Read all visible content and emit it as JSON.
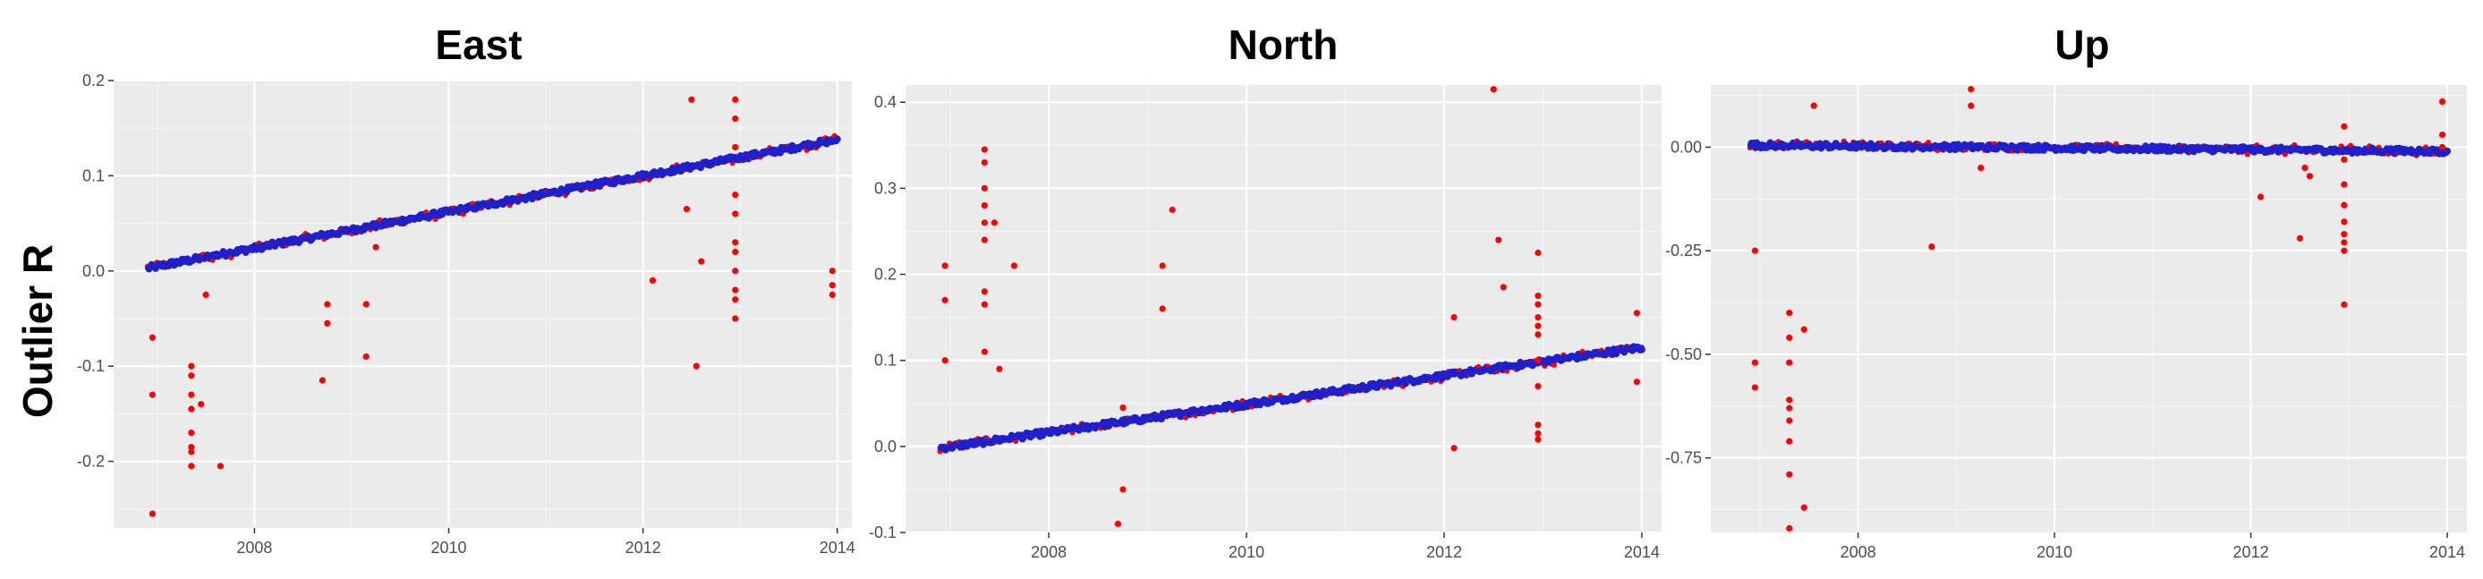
{
  "figure": {
    "ylabel": "Outlier R"
  },
  "colors": {
    "panel_bg": "#EBEBEB",
    "grid": "#FFFFFF",
    "outlier": "#FF0000",
    "fit": "#1F1FCC"
  },
  "chart_data": [
    {
      "type": "scatter",
      "title": "East",
      "xlabel": "",
      "ylabel": "Outlier R",
      "xlim": [
        2006.55,
        2014.15
      ],
      "ylim": [
        -0.27,
        0.2
      ],
      "xticks": [
        2008,
        2010,
        2012,
        2014
      ],
      "yticks": [
        -0.2,
        -0.1,
        0.0,
        0.1,
        0.2
      ],
      "ytick_labels": [
        "-0.2",
        "-0.1",
        "0.0",
        "0.1",
        "0.2"
      ],
      "grid": true,
      "trend": {
        "x": [
          2006.9,
          2014.0
        ],
        "y": [
          0.003,
          0.138
        ]
      },
      "outliers": [
        [
          2006.95,
          -0.07
        ],
        [
          2006.95,
          -0.13
        ],
        [
          2006.95,
          -0.255
        ],
        [
          2007.35,
          -0.1
        ],
        [
          2007.35,
          -0.11
        ],
        [
          2007.35,
          -0.13
        ],
        [
          2007.35,
          -0.145
        ],
        [
          2007.35,
          -0.17
        ],
        [
          2007.35,
          -0.185
        ],
        [
          2007.35,
          -0.19
        ],
        [
          2007.35,
          -0.205
        ],
        [
          2007.45,
          -0.14
        ],
        [
          2007.5,
          -0.025
        ],
        [
          2007.65,
          -0.205
        ],
        [
          2008.7,
          -0.115
        ],
        [
          2008.75,
          -0.035
        ],
        [
          2008.75,
          -0.055
        ],
        [
          2009.15,
          -0.035
        ],
        [
          2009.15,
          -0.09
        ],
        [
          2009.25,
          0.025
        ],
        [
          2012.1,
          -0.01
        ],
        [
          2012.45,
          0.065
        ],
        [
          2012.5,
          0.18
        ],
        [
          2012.55,
          -0.1
        ],
        [
          2012.6,
          0.01
        ],
        [
          2012.95,
          0.18
        ],
        [
          2012.95,
          0.16
        ],
        [
          2012.95,
          0.13
        ],
        [
          2012.95,
          0.08
        ],
        [
          2012.95,
          0.06
        ],
        [
          2012.95,
          0.03
        ],
        [
          2012.95,
          0.02
        ],
        [
          2012.95,
          0.0
        ],
        [
          2012.95,
          -0.02
        ],
        [
          2012.95,
          -0.03
        ],
        [
          2012.95,
          -0.05
        ],
        [
          2013.95,
          0.0
        ],
        [
          2013.95,
          -0.015
        ],
        [
          2013.95,
          -0.025
        ]
      ]
    },
    {
      "type": "scatter",
      "title": "North",
      "xlabel": "",
      "ylabel": "",
      "xlim": [
        2006.55,
        2014.2
      ],
      "ylim": [
        -0.1,
        0.42
      ],
      "xticks": [
        2008,
        2010,
        2012,
        2014
      ],
      "yticks": [
        -0.1,
        0.0,
        0.1,
        0.2,
        0.3,
        0.4
      ],
      "ytick_labels": [
        "-0.1",
        "0.0",
        "0.1",
        "0.2",
        "0.3",
        "0.4"
      ],
      "grid": true,
      "trend": {
        "x": [
          2006.9,
          2014.0
        ],
        "y": [
          -0.002,
          0.115
        ]
      },
      "outliers": [
        [
          2006.95,
          0.21
        ],
        [
          2006.95,
          0.17
        ],
        [
          2006.95,
          0.1
        ],
        [
          2007.35,
          0.345
        ],
        [
          2007.35,
          0.33
        ],
        [
          2007.35,
          0.3
        ],
        [
          2007.35,
          0.28
        ],
        [
          2007.35,
          0.26
        ],
        [
          2007.35,
          0.24
        ],
        [
          2007.35,
          0.18
        ],
        [
          2007.35,
          0.165
        ],
        [
          2007.35,
          0.11
        ],
        [
          2007.45,
          0.26
        ],
        [
          2007.5,
          0.09
        ],
        [
          2007.65,
          0.21
        ],
        [
          2008.7,
          -0.09
        ],
        [
          2008.75,
          -0.05
        ],
        [
          2008.75,
          0.045
        ],
        [
          2009.15,
          0.21
        ],
        [
          2009.15,
          0.16
        ],
        [
          2009.25,
          0.275
        ],
        [
          2012.1,
          -0.002
        ],
        [
          2012.1,
          0.15
        ],
        [
          2012.5,
          0.415
        ],
        [
          2012.55,
          0.24
        ],
        [
          2012.6,
          0.185
        ],
        [
          2012.95,
          0.225
        ],
        [
          2012.95,
          0.175
        ],
        [
          2012.95,
          0.165
        ],
        [
          2012.95,
          0.15
        ],
        [
          2012.95,
          0.14
        ],
        [
          2012.95,
          0.13
        ],
        [
          2012.95,
          0.1
        ],
        [
          2012.95,
          0.07
        ],
        [
          2012.95,
          0.025
        ],
        [
          2012.95,
          0.015
        ],
        [
          2012.95,
          0.008
        ],
        [
          2013.95,
          0.155
        ],
        [
          2013.95,
          0.075
        ]
      ]
    },
    {
      "type": "scatter",
      "title": "Up",
      "xlabel": "",
      "ylabel": "",
      "xlim": [
        2006.5,
        2014.2
      ],
      "ylim": [
        -0.93,
        0.15
      ],
      "xticks": [
        2008,
        2010,
        2012,
        2014
      ],
      "yticks": [
        -0.75,
        -0.5,
        -0.25,
        0.0
      ],
      "ytick_labels": [
        "-0.75",
        "-0.50",
        "-0.25",
        "0.00"
      ],
      "grid": true,
      "trend": {
        "x": [
          2006.9,
          2014.0
        ],
        "y": [
          0.005,
          -0.01
        ]
      },
      "outliers": [
        [
          2006.95,
          -0.25
        ],
        [
          2006.95,
          -0.52
        ],
        [
          2006.95,
          -0.58
        ],
        [
          2007.3,
          -0.4
        ],
        [
          2007.3,
          -0.46
        ],
        [
          2007.3,
          -0.52
        ],
        [
          2007.3,
          -0.61
        ],
        [
          2007.3,
          -0.63
        ],
        [
          2007.3,
          -0.66
        ],
        [
          2007.3,
          -0.71
        ],
        [
          2007.3,
          -0.79
        ],
        [
          2007.3,
          -0.92
        ],
        [
          2007.45,
          -0.44
        ],
        [
          2007.45,
          -0.87
        ],
        [
          2007.55,
          0.1
        ],
        [
          2008.75,
          -0.24
        ],
        [
          2009.15,
          0.14
        ],
        [
          2009.15,
          0.1
        ],
        [
          2009.25,
          -0.05
        ],
        [
          2012.1,
          -0.12
        ],
        [
          2012.5,
          -0.22
        ],
        [
          2012.55,
          -0.05
        ],
        [
          2012.6,
          -0.07
        ],
        [
          2012.95,
          0.05
        ],
        [
          2012.95,
          -0.03
        ],
        [
          2012.95,
          -0.09
        ],
        [
          2012.95,
          -0.14
        ],
        [
          2012.95,
          -0.18
        ],
        [
          2012.95,
          -0.21
        ],
        [
          2012.95,
          -0.23
        ],
        [
          2012.95,
          -0.25
        ],
        [
          2012.95,
          -0.38
        ],
        [
          2013.95,
          0.11
        ],
        [
          2013.95,
          0.03
        ],
        [
          2013.95,
          0.0
        ]
      ]
    }
  ]
}
